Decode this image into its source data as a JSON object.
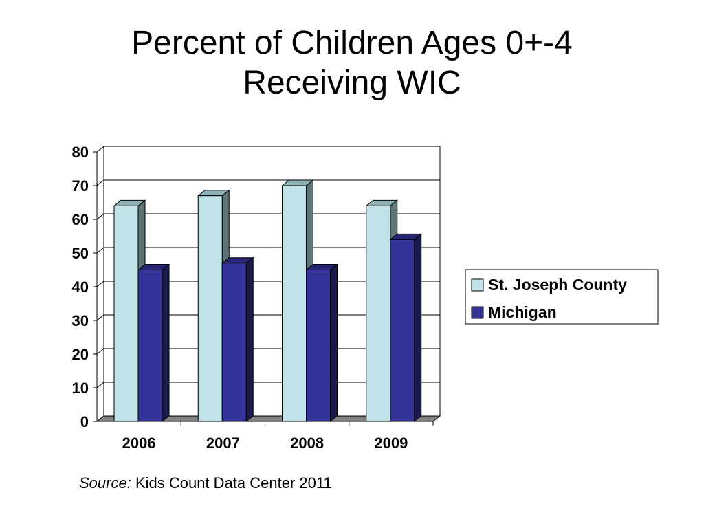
{
  "title_lines": [
    "Percent of Children Ages 0+-4",
    "Receiving WIC"
  ],
  "source": {
    "label": "Source:",
    "text": " Kids Count Data Center 2011"
  },
  "chart_data": {
    "type": "bar",
    "style": "3d-clustered-column",
    "categories": [
      "2006",
      "2007",
      "2008",
      "2009"
    ],
    "series": [
      {
        "name": "St. Joseph County",
        "values": [
          64,
          67,
          70,
          64
        ],
        "color": "#bfe3e8",
        "side_color": "#5f7477",
        "top_color": "#8fb0b4"
      },
      {
        "name": "Michigan",
        "values": [
          45,
          47,
          45,
          54
        ],
        "color": "#333399",
        "side_color": "#1a1a4d",
        "top_color": "#262673"
      }
    ],
    "y_ticks": [
      "0",
      "10",
      "20",
      "30",
      "40",
      "50",
      "60",
      "70",
      "80"
    ],
    "ylim": [
      0,
      80
    ],
    "grid": true,
    "legend_position": "right"
  }
}
